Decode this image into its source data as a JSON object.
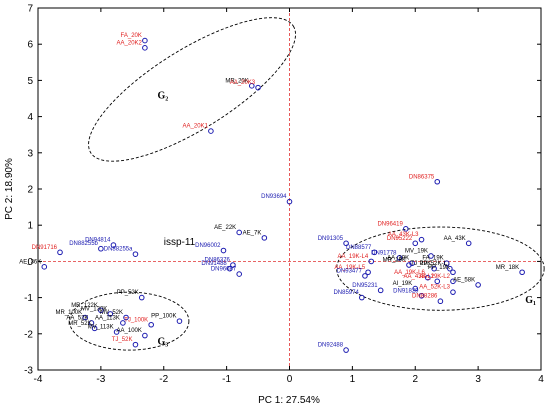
{
  "chart_data": {
    "type": "scatter",
    "xlabel": "PC 1: 27.54%",
    "ylabel": "PC 2: 18.90%",
    "xlim": [
      -4,
      4
    ],
    "ylim": [
      -3,
      7
    ],
    "xticks": [
      -4,
      -3,
      -2,
      -1,
      0,
      1,
      2,
      3,
      4
    ],
    "yticks": [
      -3,
      -2,
      -1,
      0,
      1,
      2,
      3,
      4,
      5,
      6,
      7
    ],
    "grid": false,
    "reference_lines": {
      "x": 0,
      "y": 0,
      "style": "dashed",
      "color": "#e03030"
    },
    "colors": {
      "point": "#1a1ab0",
      "label_default": "#1a1ab0",
      "label_red": "#e02020",
      "label_black": "#000000"
    },
    "points": [
      {
        "x": -2.3,
        "y": 6.1,
        "label": "FA_20K",
        "color": "red"
      },
      {
        "x": -2.3,
        "y": 5.9,
        "label": "AA_20K2",
        "color": "red"
      },
      {
        "x": -0.6,
        "y": 4.85,
        "label": "MR_20K",
        "color": "black"
      },
      {
        "x": -0.5,
        "y": 4.8,
        "label": "AA_20K3",
        "color": "red"
      },
      {
        "x": -1.25,
        "y": 3.6,
        "label": "AA_20K1",
        "color": "red"
      },
      {
        "x": 0.0,
        "y": 1.65,
        "label": "DN93694",
        "color": "blue"
      },
      {
        "x": 2.35,
        "y": 2.2,
        "label": "DN86375",
        "color": "red"
      },
      {
        "x": -0.8,
        "y": 0.8,
        "label": "AE_22K",
        "color": "black"
      },
      {
        "x": -0.4,
        "y": 0.65,
        "label": "AE_7K",
        "color": "black"
      },
      {
        "x": 0.9,
        "y": 0.5,
        "label": "DN91305",
        "color": "blue"
      },
      {
        "x": -2.8,
        "y": 0.45,
        "label": "DN94814",
        "color": "blue"
      },
      {
        "x": -3.0,
        "y": 0.35,
        "label": "DN88255b",
        "color": "blue"
      },
      {
        "x": -2.45,
        "y": 0.2,
        "label": "DN88255a",
        "color": "blue"
      },
      {
        "x": -3.65,
        "y": 0.25,
        "label": "DN91716",
        "color": "red"
      },
      {
        "x": -1.05,
        "y": 0.3,
        "label": "DN96002",
        "color": "blue"
      },
      {
        "x": -3.9,
        "y": -0.15,
        "label": "AE_36K",
        "color": "black"
      },
      {
        "x": -0.9,
        "y": -0.1,
        "label": "DN86376",
        "color": "blue"
      },
      {
        "x": -0.95,
        "y": -0.2,
        "label": "DN91488",
        "color": "blue"
      },
      {
        "x": -0.8,
        "y": -0.35,
        "label": "DN96087",
        "color": "blue"
      },
      {
        "x": 1.85,
        "y": 0.9,
        "label": "DN96419",
        "color": "red"
      },
      {
        "x": 2.0,
        "y": 0.5,
        "label": "DN95222",
        "color": "red"
      },
      {
        "x": 2.1,
        "y": 0.6,
        "label": "AA_43K-L3",
        "color": "red"
      },
      {
        "x": 2.85,
        "y": 0.5,
        "label": "AA_43K",
        "color": "black"
      },
      {
        "x": 1.35,
        "y": 0.25,
        "label": "DN88577",
        "color": "blue"
      },
      {
        "x": 1.75,
        "y": 0.1,
        "label": "DN91778",
        "color": "blue"
      },
      {
        "x": 2.25,
        "y": 0.15,
        "label": "MV_19K",
        "color": "black"
      },
      {
        "x": 1.3,
        "y": 0.0,
        "label": "AA_19K-L4",
        "color": "red"
      },
      {
        "x": 1.95,
        "y": -0.05,
        "label": "AA_19K",
        "color": "black"
      },
      {
        "x": 2.5,
        "y": -0.05,
        "label": "FA_19K",
        "color": "black"
      },
      {
        "x": 1.9,
        "y": -0.1,
        "label": "MR_19K",
        "color": "black"
      },
      {
        "x": 2.3,
        "y": -0.2,
        "label": "TJ_19K",
        "color": "black"
      },
      {
        "x": 2.55,
        "y": -0.2,
        "label": "PP_52K-L",
        "color": "black"
      },
      {
        "x": 1.25,
        "y": -0.3,
        "label": "AA_19K-L5",
        "color": "red"
      },
      {
        "x": 2.6,
        "y": -0.3,
        "label": "PP_19K",
        "color": "black"
      },
      {
        "x": 1.2,
        "y": -0.4,
        "label": "DN93477",
        "color": "blue"
      },
      {
        "x": 2.2,
        "y": -0.45,
        "label": "AA_19K-L6",
        "color": "red"
      },
      {
        "x": 2.35,
        "y": -0.55,
        "label": "AA_43K-L2",
        "color": "red"
      },
      {
        "x": 2.6,
        "y": -0.55,
        "label": "AA_19K-L2",
        "color": "red"
      },
      {
        "x": 3.0,
        "y": -0.65,
        "label": "AE_58K",
        "color": "black"
      },
      {
        "x": 2.0,
        "y": -0.75,
        "label": "AI_19K",
        "color": "black"
      },
      {
        "x": 1.45,
        "y": -0.8,
        "label": "DN95231",
        "color": "blue"
      },
      {
        "x": 2.6,
        "y": -0.85,
        "label": "AA_52K-L3",
        "color": "red"
      },
      {
        "x": 2.1,
        "y": -0.95,
        "label": "DN91829",
        "color": "blue"
      },
      {
        "x": 3.7,
        "y": -0.3,
        "label": "MR_18K",
        "color": "black"
      },
      {
        "x": 1.15,
        "y": -1.0,
        "label": "DN85974",
        "color": "blue"
      },
      {
        "x": 2.4,
        "y": -1.1,
        "label": "DN88286",
        "color": "red"
      },
      {
        "x": -2.35,
        "y": -1.0,
        "label": "PP_52K",
        "color": "black"
      },
      {
        "x": -3.0,
        "y": -1.35,
        "label": "MR_122K",
        "color": "black"
      },
      {
        "x": -2.85,
        "y": -1.45,
        "label": "MV_130K",
        "color": "black"
      },
      {
        "x": -3.25,
        "y": -1.55,
        "label": "MR_100K",
        "color": "black"
      },
      {
        "x": -2.6,
        "y": -1.55,
        "label": "MV_52K",
        "color": "black"
      },
      {
        "x": -3.15,
        "y": -1.7,
        "label": "AA_52K",
        "color": "black"
      },
      {
        "x": -1.75,
        "y": -1.65,
        "label": "PP_100K",
        "color": "black"
      },
      {
        "x": -2.65,
        "y": -1.7,
        "label": "AA_113K",
        "color": "black"
      },
      {
        "x": -3.1,
        "y": -1.85,
        "label": "MR_52K",
        "color": "black"
      },
      {
        "x": -2.2,
        "y": -1.75,
        "label": "TJ_100K",
        "color": "red"
      },
      {
        "x": -2.75,
        "y": -1.95,
        "label": "MV_113K",
        "color": "black"
      },
      {
        "x": -2.3,
        "y": -2.05,
        "label": "AA_100K",
        "color": "black"
      },
      {
        "x": -2.45,
        "y": -2.3,
        "label": "TJ_52K",
        "color": "red"
      },
      {
        "x": 0.9,
        "y": -2.45,
        "label": "DN92488",
        "color": "blue"
      }
    ],
    "groups": [
      {
        "name": "G₂",
        "cx": -1.55,
        "cy": 4.75,
        "rx": 1.9,
        "ry": 1.1,
        "angle": -32
      },
      {
        "name": "G₁",
        "cx": 2.4,
        "cy": -0.2,
        "rx": 1.65,
        "ry": 1.15,
        "angle": 0
      },
      {
        "name": "G₃",
        "cx": -2.55,
        "cy": -1.65,
        "rx": 0.95,
        "ry": 0.8,
        "angle": 0
      }
    ],
    "annotations": [
      {
        "text": "issp-11",
        "x": -2.0,
        "y": 0.45
      }
    ]
  }
}
